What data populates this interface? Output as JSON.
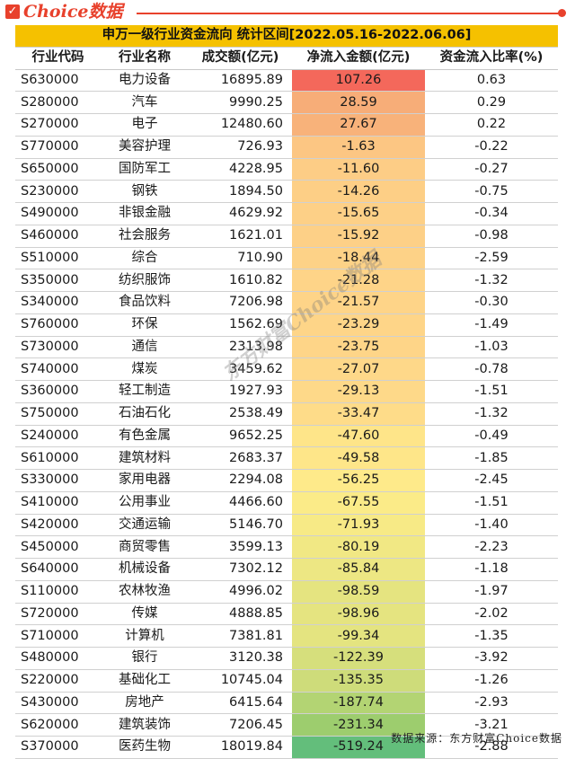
{
  "brand": {
    "logo_text": "Choice数据",
    "check_glyph": "✓"
  },
  "table": {
    "title": "申万一级行业资金流向 统计区间[2022.05.16-2022.06.06]",
    "headers": [
      "行业代码",
      "行业名称",
      "成交额(亿元)",
      "净流入金额(亿元)",
      "资金流入比率(%)"
    ],
    "rows": [
      {
        "code": "S630000",
        "name": "电力设备",
        "volume": "16895.89",
        "net": "107.26",
        "ratio": "0.63",
        "color": "#f4685b"
      },
      {
        "code": "S280000",
        "name": "汽车",
        "volume": "9990.25",
        "net": "28.59",
        "ratio": "0.29",
        "color": "#f7ad78"
      },
      {
        "code": "S270000",
        "name": "电子",
        "volume": "12480.60",
        "net": "27.67",
        "ratio": "0.22",
        "color": "#f8b27a"
      },
      {
        "code": "S770000",
        "name": "美容护理",
        "volume": "726.93",
        "net": "-1.63",
        "ratio": "-0.22",
        "color": "#fcc683"
      },
      {
        "code": "S650000",
        "name": "国防军工",
        "volume": "4228.95",
        "net": "-11.60",
        "ratio": "-0.27",
        "color": "#fdcd86"
      },
      {
        "code": "S230000",
        "name": "钢铁",
        "volume": "1894.50",
        "net": "-14.26",
        "ratio": "-0.75",
        "color": "#fdcf86"
      },
      {
        "code": "S490000",
        "name": "非银金融",
        "volume": "4629.92",
        "net": "-15.65",
        "ratio": "-0.34",
        "color": "#fdd087"
      },
      {
        "code": "S460000",
        "name": "社会服务",
        "volume": "1621.01",
        "net": "-15.92",
        "ratio": "-0.98",
        "color": "#fdd087"
      },
      {
        "code": "S510000",
        "name": "综合",
        "volume": "710.90",
        "net": "-18.44",
        "ratio": "-2.59",
        "color": "#fdd287"
      },
      {
        "code": "S350000",
        "name": "纺织服饰",
        "volume": "1610.82",
        "net": "-21.28",
        "ratio": "-1.32",
        "color": "#fed488"
      },
      {
        "code": "S340000",
        "name": "食品饮料",
        "volume": "7206.98",
        "net": "-21.57",
        "ratio": "-0.30",
        "color": "#fed488"
      },
      {
        "code": "S760000",
        "name": "环保",
        "volume": "1562.69",
        "net": "-23.29",
        "ratio": "-1.49",
        "color": "#fed588"
      },
      {
        "code": "S730000",
        "name": "通信",
        "volume": "2313.98",
        "net": "-23.75",
        "ratio": "-1.03",
        "color": "#fed588"
      },
      {
        "code": "S740000",
        "name": "煤炭",
        "volume": "3459.62",
        "net": "-27.07",
        "ratio": "-0.78",
        "color": "#fed889"
      },
      {
        "code": "S360000",
        "name": "轻工制造",
        "volume": "1927.93",
        "net": "-29.13",
        "ratio": "-1.51",
        "color": "#fed989"
      },
      {
        "code": "S750000",
        "name": "石油石化",
        "volume": "2538.49",
        "net": "-33.47",
        "ratio": "-1.32",
        "color": "#fedc89"
      },
      {
        "code": "S240000",
        "name": "有色金属",
        "volume": "9652.25",
        "net": "-47.60",
        "ratio": "-0.49",
        "color": "#fee589"
      },
      {
        "code": "S610000",
        "name": "建筑材料",
        "volume": "2683.37",
        "net": "-49.58",
        "ratio": "-1.85",
        "color": "#fee689"
      },
      {
        "code": "S330000",
        "name": "家用电器",
        "volume": "2294.08",
        "net": "-56.25",
        "ratio": "-2.45",
        "color": "#feea8a"
      },
      {
        "code": "S410000",
        "name": "公用事业",
        "volume": "4466.60",
        "net": "-67.55",
        "ratio": "-1.51",
        "color": "#fbeb88"
      },
      {
        "code": "S420000",
        "name": "交通运输",
        "volume": "5146.70",
        "net": "-71.93",
        "ratio": "-1.40",
        "color": "#f7ea86"
      },
      {
        "code": "S450000",
        "name": "商贸零售",
        "volume": "3599.13",
        "net": "-80.19",
        "ratio": "-2.23",
        "color": "#f1e884"
      },
      {
        "code": "S640000",
        "name": "机械设备",
        "volume": "7302.12",
        "net": "-85.84",
        "ratio": "-1.18",
        "color": "#ede783"
      },
      {
        "code": "S110000",
        "name": "农林牧渔",
        "volume": "4996.02",
        "net": "-98.59",
        "ratio": "-1.97",
        "color": "#e5e480"
      },
      {
        "code": "S720000",
        "name": "传媒",
        "volume": "4888.85",
        "net": "-98.96",
        "ratio": "-2.02",
        "color": "#e5e480"
      },
      {
        "code": "S710000",
        "name": "计算机",
        "volume": "7381.81",
        "net": "-99.34",
        "ratio": "-1.35",
        "color": "#e4e480"
      },
      {
        "code": "S480000",
        "name": "银行",
        "volume": "3120.38",
        "net": "-122.39",
        "ratio": "-3.92",
        "color": "#d6df7c"
      },
      {
        "code": "S220000",
        "name": "基础化工",
        "volume": "10745.04",
        "net": "-135.35",
        "ratio": "-1.26",
        "color": "#cedc7a"
      },
      {
        "code": "S430000",
        "name": "房地产",
        "volume": "6415.64",
        "net": "-187.74",
        "ratio": "-2.93",
        "color": "#b3d473"
      },
      {
        "code": "S620000",
        "name": "建筑装饰",
        "volume": "7206.45",
        "net": "-231.34",
        "ratio": "-3.21",
        "color": "#9dcd6e"
      },
      {
        "code": "S370000",
        "name": "医药生物",
        "volume": "18019.84",
        "net": "-519.24",
        "ratio": "-2.88",
        "color": "#63be7b"
      }
    ]
  },
  "watermark": "东方财富Choice数据",
  "footer": "数据来源：东方财富Choice数据"
}
